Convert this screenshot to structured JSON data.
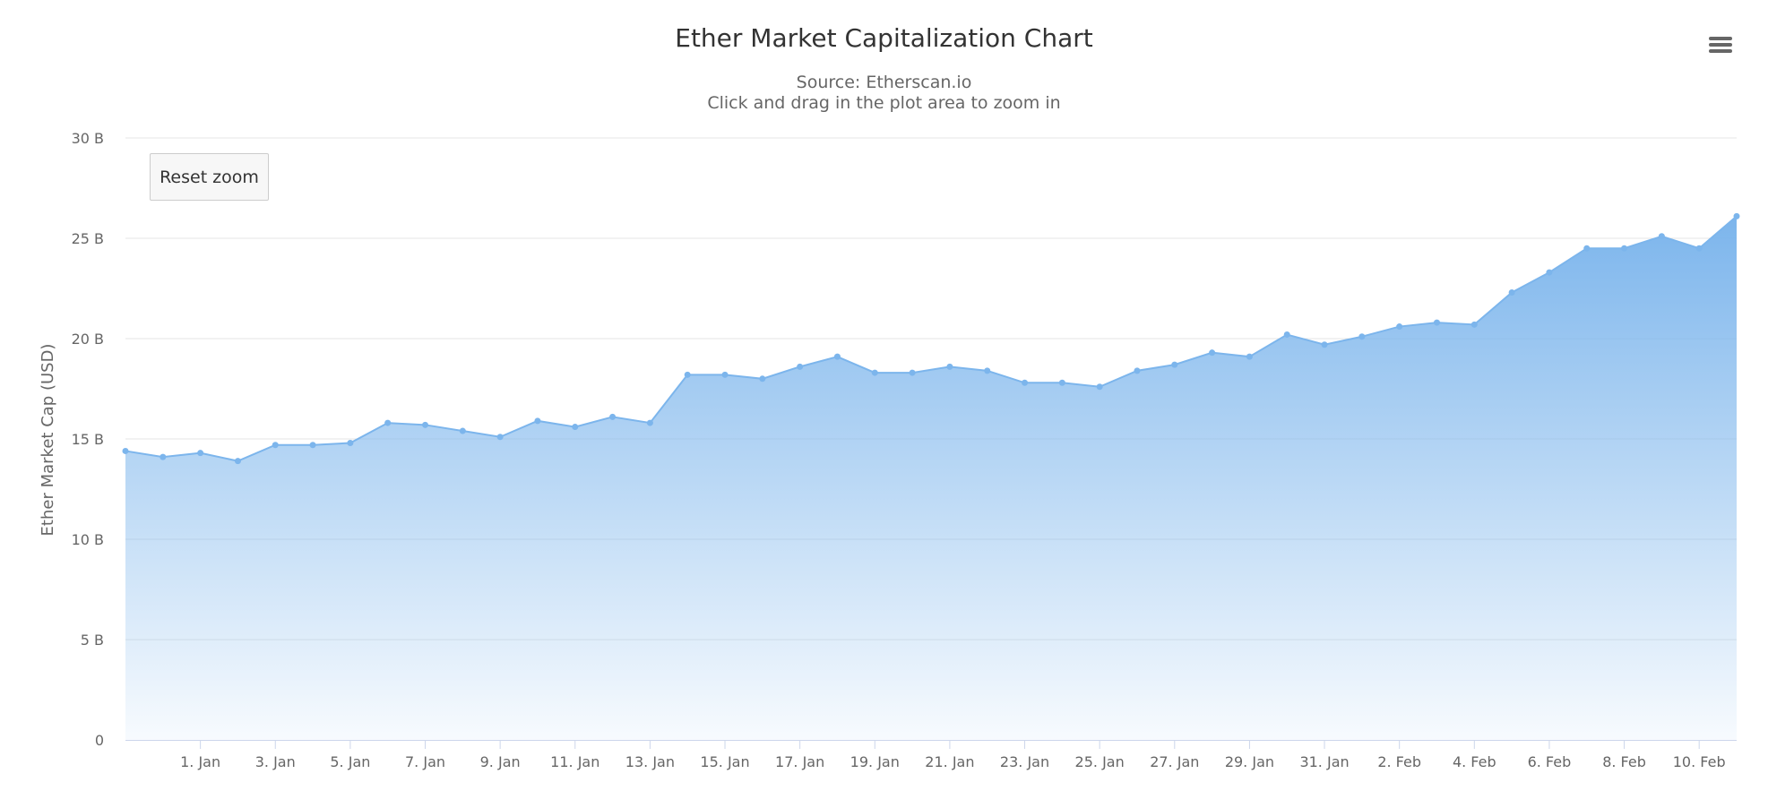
{
  "title": "Ether Market Capitalization Chart",
  "subtitle_lines": [
    "Source: Etherscan.io",
    "Click and drag in the plot area to zoom in"
  ],
  "reset_zoom_label": "Reset zoom",
  "menu_icon": "hamburger-menu-icon",
  "colors": {
    "series": "#7cb5ec",
    "grid": "#e6e6e6",
    "axis_line": "#ccd6eb"
  },
  "chart_data": {
    "type": "area",
    "title": "Ether Market Capitalization Chart",
    "subtitle": "Source: Etherscan.io",
    "xlabel": "",
    "ylabel": "Ether Market Cap (USD)",
    "ylim": [
      0,
      30
    ],
    "yunit": "B",
    "yticks": [
      "0",
      "5 B",
      "10 B",
      "15 B",
      "20 B",
      "25 B",
      "30 B"
    ],
    "xticks": [
      "1. Jan",
      "3. Jan",
      "5. Jan",
      "7. Jan",
      "9. Jan",
      "11. Jan",
      "13. Jan",
      "15. Jan",
      "17. Jan",
      "19. Jan",
      "21. Jan",
      "23. Jan",
      "25. Jan",
      "27. Jan",
      "29. Jan",
      "31. Jan",
      "2. Feb",
      "4. Feb",
      "6. Feb",
      "8. Feb",
      "10. Feb"
    ],
    "xlim": [
      "2017-12-30",
      "2018-02-11"
    ],
    "grid": true,
    "legend": false,
    "series": [
      {
        "x": [
          "2017-12-30",
          "2017-12-31",
          "2018-01-01",
          "2018-01-02",
          "2018-01-03",
          "2018-01-04",
          "2018-01-05",
          "2018-01-06",
          "2018-01-07",
          "2018-01-08",
          "2018-01-09",
          "2018-01-10",
          "2018-01-11",
          "2018-01-12",
          "2018-01-13",
          "2018-01-14",
          "2018-01-15",
          "2018-01-16",
          "2018-01-17",
          "2018-01-18",
          "2018-01-19",
          "2018-01-20",
          "2018-01-21",
          "2018-01-22",
          "2018-01-23",
          "2018-01-24",
          "2018-01-25",
          "2018-01-26",
          "2018-01-27",
          "2018-01-28",
          "2018-01-29",
          "2018-01-30",
          "2018-01-31",
          "2018-02-01",
          "2018-02-02",
          "2018-02-03",
          "2018-02-04",
          "2018-02-05",
          "2018-02-06",
          "2018-02-07",
          "2018-02-08",
          "2018-02-09",
          "2018-02-10",
          "2018-02-11"
        ],
        "values": [
          14.4,
          14.1,
          14.3,
          13.9,
          14.7,
          14.7,
          14.8,
          15.8,
          15.7,
          15.4,
          15.1,
          15.9,
          15.6,
          16.1,
          15.8,
          18.2,
          18.2,
          18.0,
          18.6,
          19.1,
          18.3,
          18.3,
          18.6,
          18.4,
          17.8,
          17.8,
          17.6,
          18.4,
          18.7,
          19.3,
          19.1,
          20.2,
          19.7,
          20.1,
          20.6,
          20.8,
          20.7,
          22.3,
          23.3,
          24.5,
          24.5,
          25.1,
          24.5,
          26.1
        ]
      }
    ]
  }
}
